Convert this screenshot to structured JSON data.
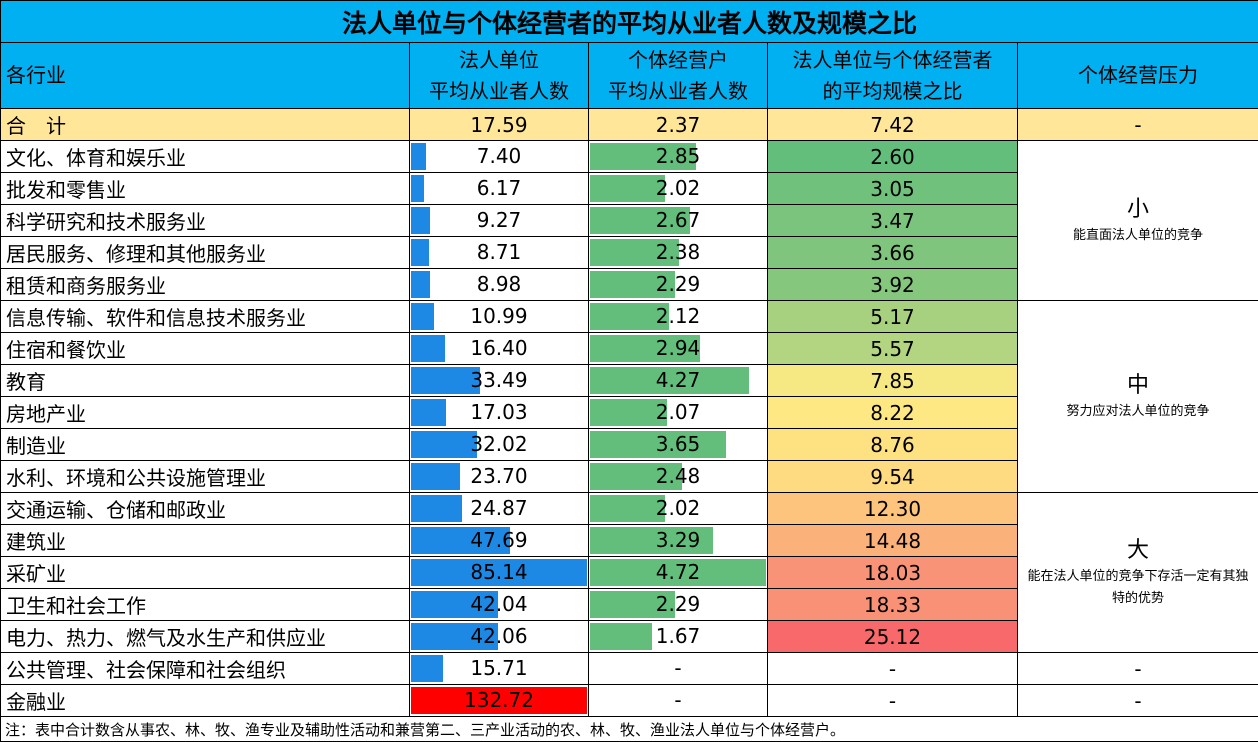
{
  "title": "法人单位与个体经营者的平均从业者人数及规模之比",
  "headers": {
    "industry": "各行业",
    "legal": [
      "法人单位",
      "平均从业者人数"
    ],
    "indiv": [
      "个体经营户",
      "平均从业者人数"
    ],
    "ratio": [
      "法人单位与个体经营者",
      "的平均规模之比"
    ],
    "pressure": "个体经营压力"
  },
  "total": {
    "name": "合　计",
    "legal": "17.59",
    "indiv": "2.37",
    "ratio": "7.42",
    "pressure": "-"
  },
  "rows": [
    {
      "name": "文化、体育和娱乐业",
      "legal": "7.40",
      "indiv": "2.85",
      "ratio": "2.60",
      "ratio_color": "#63be7b"
    },
    {
      "name": "批发和零售业",
      "legal": "6.17",
      "indiv": "2.02",
      "ratio": "3.05",
      "ratio_color": "#6fc17c"
    },
    {
      "name": "科学研究和技术服务业",
      "legal": "9.27",
      "indiv": "2.67",
      "ratio": "3.47",
      "ratio_color": "#7ac47d"
    },
    {
      "name": "居民服务、修理和其他服务业",
      "legal": "8.71",
      "indiv": "2.38",
      "ratio": "3.66",
      "ratio_color": "#7fc57d"
    },
    {
      "name": "租赁和商务服务业",
      "legal": "8.98",
      "indiv": "2.29",
      "ratio": "3.92",
      "ratio_color": "#86c77e"
    },
    {
      "name": "信息传输、软件和信息技术服务业",
      "legal": "10.99",
      "indiv": "2.12",
      "ratio": "5.17",
      "ratio_color": "#a8d17f"
    },
    {
      "name": "住宿和餐饮业",
      "legal": "16.40",
      "indiv": "2.94",
      "ratio": "5.57",
      "ratio_color": "#b3d480"
    },
    {
      "name": "教育",
      "legal": "33.49",
      "indiv": "4.27",
      "ratio": "7.85",
      "ratio_color": "#f6e883"
    },
    {
      "name": "房地产业",
      "legal": "17.03",
      "indiv": "2.07",
      "ratio": "8.22",
      "ratio_color": "#fee883"
    },
    {
      "name": "制造业",
      "legal": "32.02",
      "indiv": "3.65",
      "ratio": "8.76",
      "ratio_color": "#fee282"
    },
    {
      "name": "水利、环境和公共设施管理业",
      "legal": "23.70",
      "indiv": "2.48",
      "ratio": "9.54",
      "ratio_color": "#fedb81"
    },
    {
      "name": "交通运输、仓储和邮政业",
      "legal": "24.87",
      "indiv": "2.02",
      "ratio": "12.30",
      "ratio_color": "#fcc47d"
    },
    {
      "name": "建筑业",
      "legal": "47.69",
      "indiv": "3.29",
      "ratio": "14.48",
      "ratio_color": "#fbb17a"
    },
    {
      "name": "采矿业",
      "legal": "85.14",
      "indiv": "4.72",
      "ratio": "18.03",
      "ratio_color": "#f99377"
    },
    {
      "name": "卫生和社会工作",
      "legal": "42.04",
      "indiv": "2.29",
      "ratio": "18.33",
      "ratio_color": "#f99176"
    },
    {
      "name": "电力、热力、燃气及水生产和供应业",
      "legal": "42.06",
      "indiv": "1.67",
      "ratio": "25.12",
      "ratio_color": "#f8696b"
    },
    {
      "name": "公共管理、社会保障和社会组织",
      "legal": "15.71",
      "indiv": "-",
      "ratio": "-",
      "pressure": "-"
    },
    {
      "name": "金融业",
      "legal": "132.72",
      "indiv": "-",
      "ratio": "-",
      "pressure": "-",
      "legal_highlight": "#ff0000"
    }
  ],
  "pressure_groups": [
    {
      "level": "小",
      "desc": "能直面法人单位的竞争"
    },
    {
      "level": "中",
      "desc": "努力应对法人单位的竞争"
    },
    {
      "level": "大",
      "desc": "能在法人单位的竞争下存活一定有其独特的优势"
    }
  ],
  "bar_scale": {
    "legal_max": 85.14,
    "indiv_max": 4.72
  },
  "colors": {
    "header": "#00b0f0",
    "total": "#ffe699",
    "bar_blue": "#1e88e5",
    "bar_green": "#63be7b"
  },
  "note": "注：表中合计数含从事农、林、牧、渔专业及辅助性活动和兼营第二、三产业活动的农、林、牧、渔业法人单位与个体经营户。"
}
